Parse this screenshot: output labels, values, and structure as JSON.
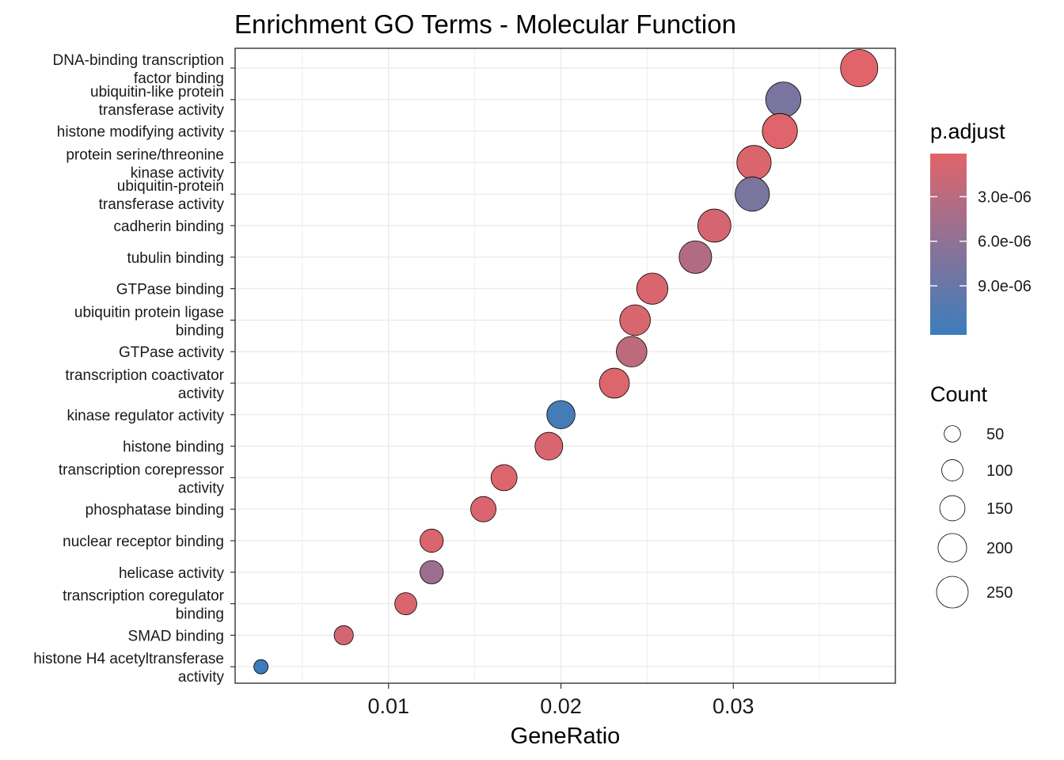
{
  "chart_data": {
    "type": "scatter",
    "title": "Enrichment GO Terms - Molecular Function",
    "xlabel": "GeneRatio",
    "ylabel": "",
    "xlim": [
      0.0011,
      0.0394
    ],
    "x_ticks": [
      0.01,
      0.02,
      0.03
    ],
    "x_tick_labels": [
      "0.01",
      "0.02",
      "0.03"
    ],
    "grid": true,
    "points": [
      {
        "term": "DNA-binding transcription\nfactor binding",
        "gene_ratio": 0.0373,
        "count": 255,
        "p_adjust": 1e-07
      },
      {
        "term": "ubiquitin-like protein\ntransferase activity",
        "gene_ratio": 0.0329,
        "count": 225,
        "p_adjust": 7.6e-06
      },
      {
        "term": "histone modifying activity",
        "gene_ratio": 0.0327,
        "count": 224,
        "p_adjust": 2e-07
      },
      {
        "term": "protein serine/threonine\nkinase activity",
        "gene_ratio": 0.0312,
        "count": 214,
        "p_adjust": 5e-07
      },
      {
        "term": "ubiquitin-protein\ntransferase activity",
        "gene_ratio": 0.0311,
        "count": 213,
        "p_adjust": 7.6e-06
      },
      {
        "term": "cadherin binding",
        "gene_ratio": 0.0289,
        "count": 198,
        "p_adjust": 1e-06
      },
      {
        "term": "tubulin binding",
        "gene_ratio": 0.0278,
        "count": 190,
        "p_adjust": 3.6e-06
      },
      {
        "term": "GTPase binding",
        "gene_ratio": 0.0253,
        "count": 173,
        "p_adjust": 7e-07
      },
      {
        "term": "ubiquitin protein ligase\nbinding",
        "gene_ratio": 0.0243,
        "count": 166,
        "p_adjust": 8e-07
      },
      {
        "term": "GTPase activity",
        "gene_ratio": 0.0241,
        "count": 165,
        "p_adjust": 2.7e-06
      },
      {
        "term": "transcription coactivator\nactivity",
        "gene_ratio": 0.0231,
        "count": 158,
        "p_adjust": 4e-07
      },
      {
        "term": "kinase regulator activity",
        "gene_ratio": 0.02,
        "count": 137,
        "p_adjust": 1.16e-05
      },
      {
        "term": "histone binding",
        "gene_ratio": 0.0193,
        "count": 132,
        "p_adjust": 7e-07
      },
      {
        "term": "transcription corepressor\nactivity",
        "gene_ratio": 0.0167,
        "count": 114,
        "p_adjust": 4e-07
      },
      {
        "term": "phosphatase binding",
        "gene_ratio": 0.0155,
        "count": 106,
        "p_adjust": 6e-07
      },
      {
        "term": "nuclear receptor binding",
        "gene_ratio": 0.0125,
        "count": 86,
        "p_adjust": 5e-07
      },
      {
        "term": "helicase activity",
        "gene_ratio": 0.0125,
        "count": 86,
        "p_adjust": 5.1e-06
      },
      {
        "term": "transcription coregulator\nbinding",
        "gene_ratio": 0.011,
        "count": 75,
        "p_adjust": 6e-07
      },
      {
        "term": "SMAD binding",
        "gene_ratio": 0.0074,
        "count": 51,
        "p_adjust": 1.1e-06
      },
      {
        "term": "histone H4 acetyltransferase\nactivity",
        "gene_ratio": 0.0026,
        "count": 18,
        "p_adjust": 1.23e-05
      }
    ],
    "color_legend": {
      "title": "p.adjust",
      "range": [
        1e-07,
        1.23e-05
      ],
      "low_color": "#E1646A",
      "mid_color": "#8D7297",
      "high_color": "#3B7DBB",
      "ticks": [
        3e-06,
        6e-06,
        9e-06
      ],
      "tick_labels": [
        "3.0e-06",
        "6.0e-06",
        "9.0e-06"
      ]
    },
    "size_legend": {
      "title": "Count",
      "values": [
        50,
        100,
        150,
        200,
        250
      ],
      "labels": [
        "50",
        "100",
        "150",
        "200",
        "250"
      ]
    },
    "legend_position": "right"
  }
}
